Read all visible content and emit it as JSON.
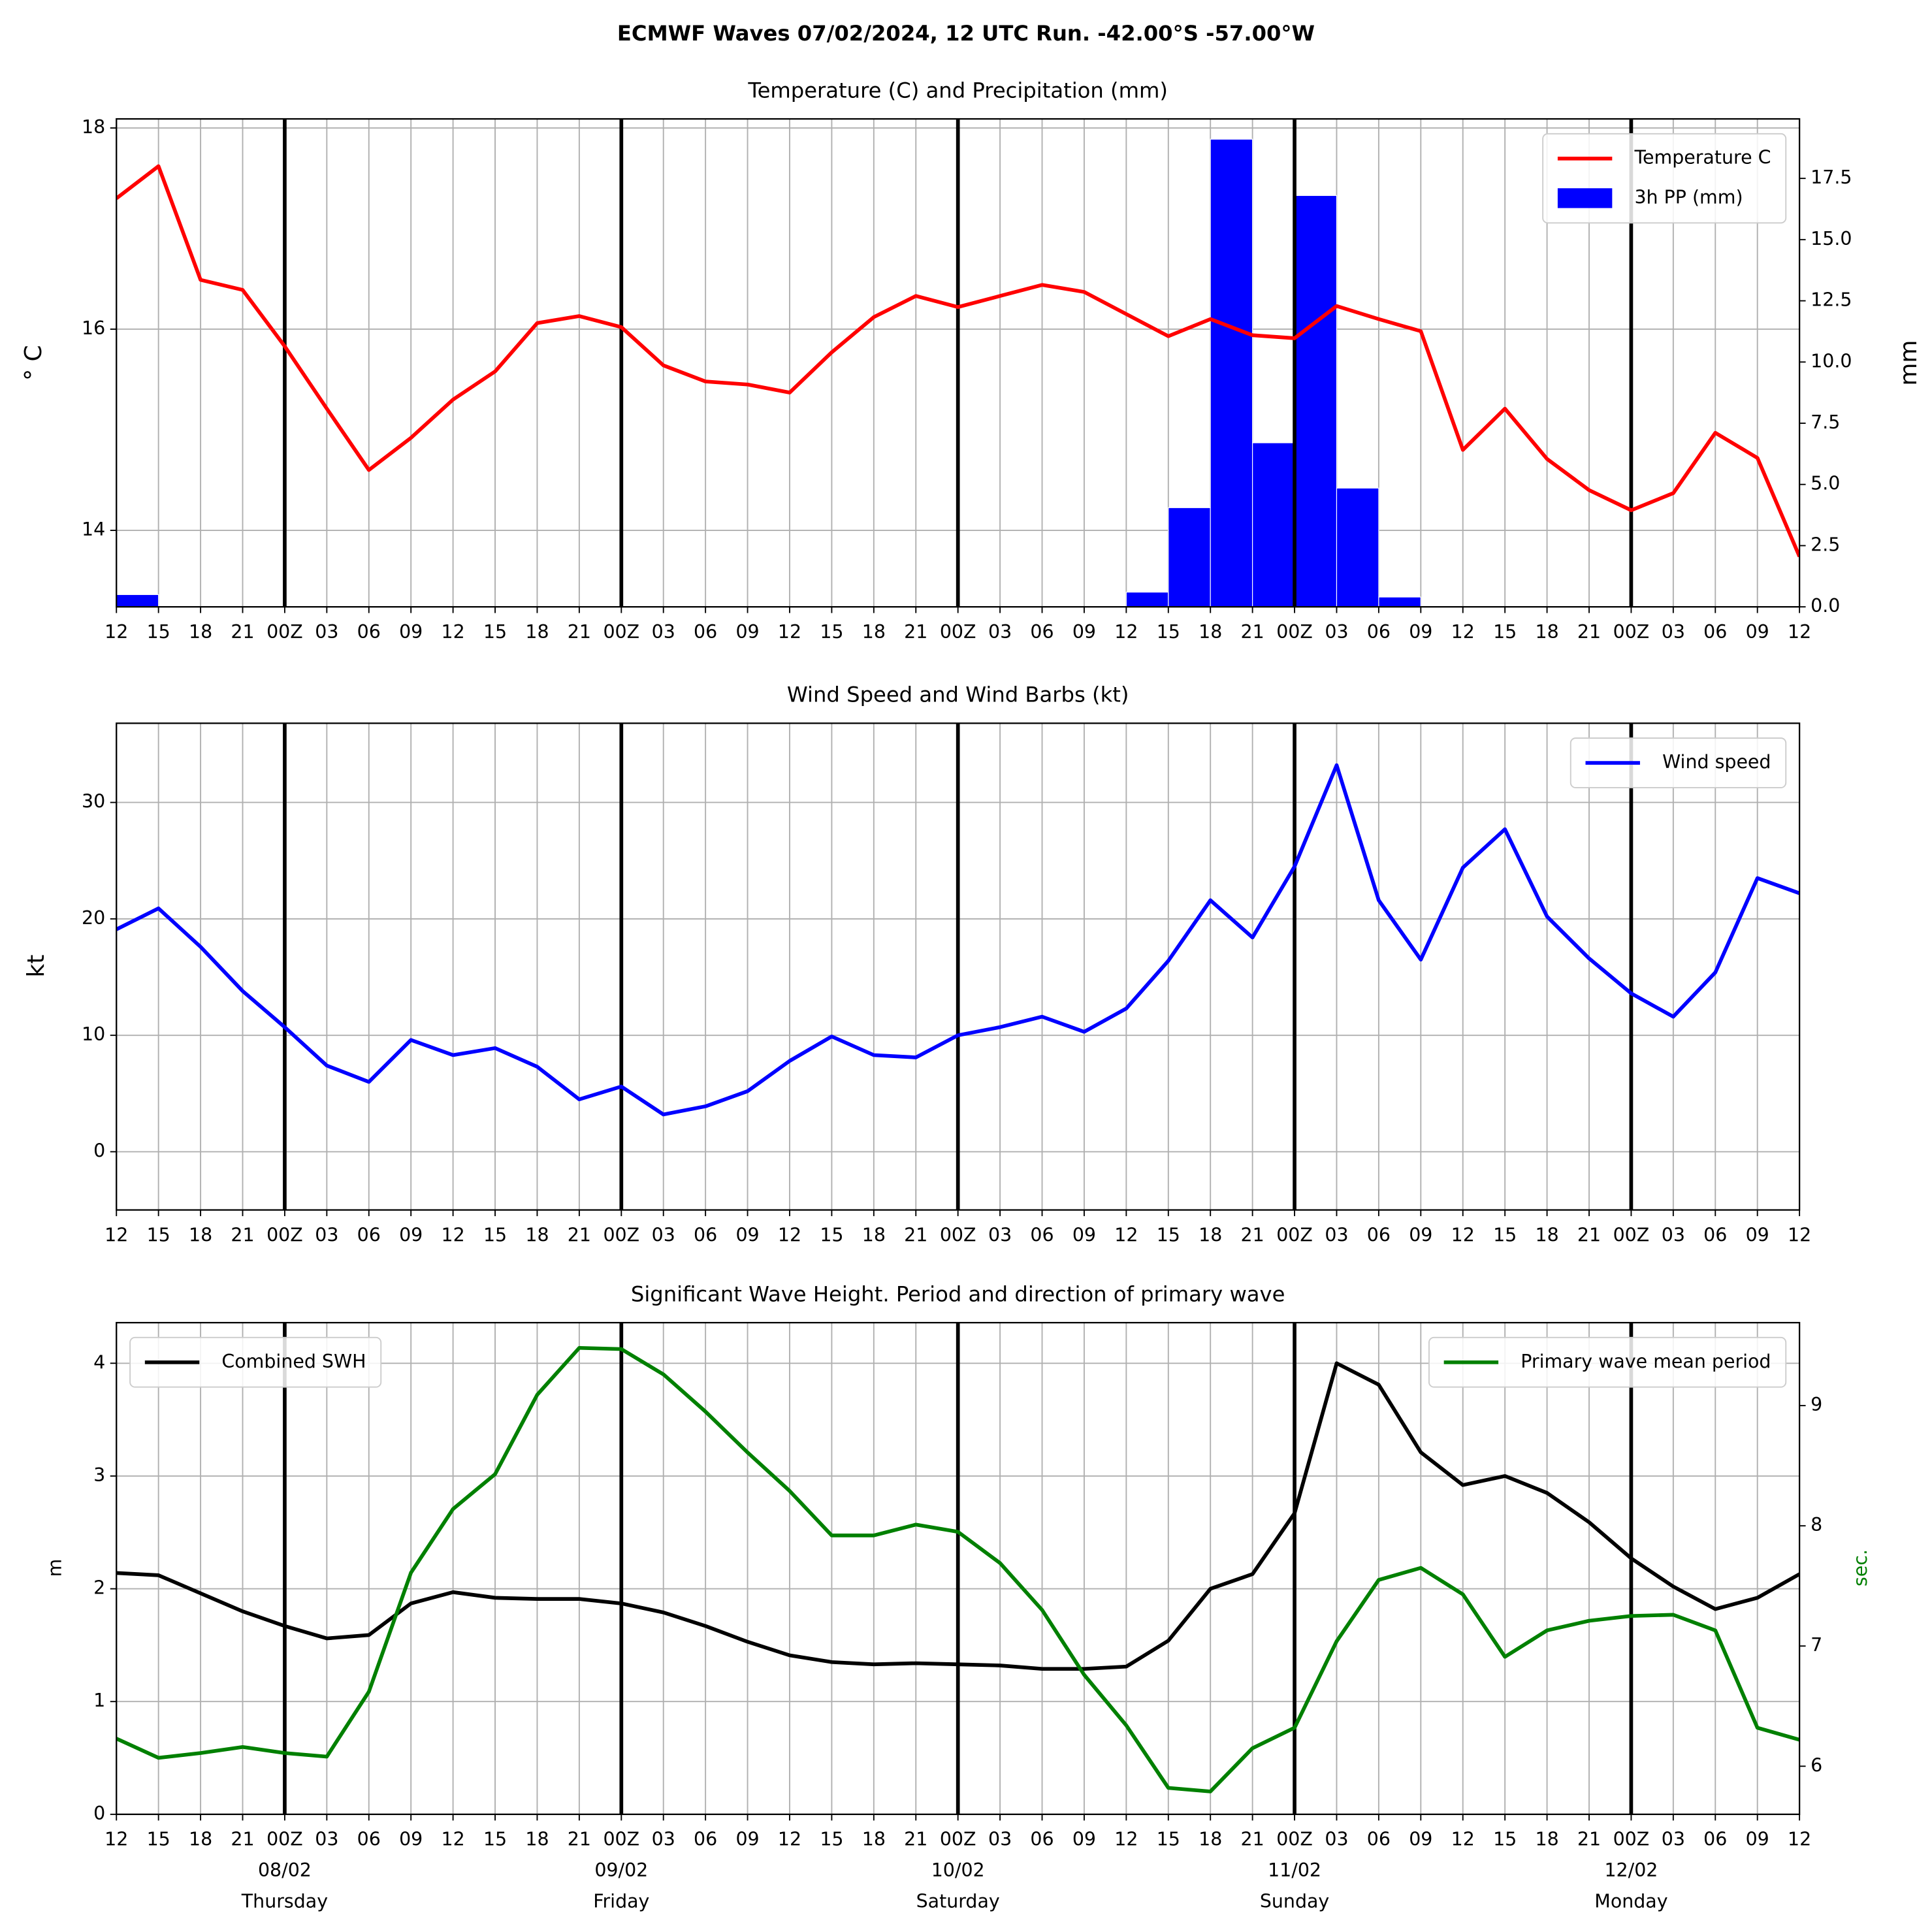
{
  "title": "ECMWF Waves 07/02/2024, 12 UTC Run. -42.00°S -57.00°W",
  "chart_data": [
    {
      "type": "combo",
      "title": "Temperature (C) and Precipitation (mm)",
      "categories": [
        "12",
        "15",
        "18",
        "21",
        "00Z",
        "03",
        "06",
        "09",
        "12",
        "15",
        "18",
        "21",
        "00Z",
        "03",
        "06",
        "09",
        "12",
        "15",
        "18",
        "21",
        "00Z",
        "03",
        "06",
        "09",
        "12",
        "15",
        "18",
        "21",
        "00Z",
        "03",
        "06",
        "09",
        "12",
        "15",
        "18",
        "21",
        "00Z",
        "03",
        "06",
        "09",
        "12"
      ],
      "ylabel": "° C",
      "y2label": "mm",
      "ylim": [
        13.24,
        18.09
      ],
      "yticks": [
        14,
        16,
        18
      ],
      "y2lim": [
        0,
        19.93
      ],
      "y2ticks": [
        {
          "value": 0,
          "label": "0.0"
        },
        {
          "value": 2.5,
          "label": "2.5"
        },
        {
          "value": 5,
          "label": "5.0"
        },
        {
          "value": 7.5,
          "label": "7.5"
        },
        {
          "value": 10,
          "label": "10.0"
        },
        {
          "value": 12.5,
          "label": "12.5"
        },
        {
          "value": 15,
          "label": "15.0"
        },
        {
          "value": 17.5,
          "label": "17.5"
        }
      ],
      "grid": true,
      "series": [
        {
          "name": "Temperature C",
          "type": "line",
          "color": "#ff0000",
          "legend": "upper right",
          "values": [
            17.3,
            17.62,
            16.49,
            16.39,
            15.83,
            15.21,
            14.6,
            14.92,
            15.3,
            15.58,
            16.06,
            16.13,
            16.02,
            15.64,
            15.48,
            15.45,
            15.37,
            15.77,
            16.12,
            16.33,
            16.22,
            16.33,
            16.44,
            16.37,
            16.15,
            15.93,
            16.1,
            15.94,
            15.91,
            16.23,
            16.1,
            15.98,
            14.8,
            15.21,
            14.71,
            14.4,
            14.2,
            14.37,
            14.97,
            14.72,
            13.74
          ]
        },
        {
          "name": "3h PP (mm)",
          "type": "bar",
          "axis": "y2",
          "color": "#0000ff",
          "legend": "upper right",
          "values": [
            0.5,
            0,
            0,
            0,
            0,
            0,
            0,
            0,
            0,
            0,
            0,
            0,
            0,
            0,
            0,
            0,
            0,
            0,
            0,
            0,
            0,
            0,
            0,
            0,
            0.6,
            4.05,
            19.1,
            6.7,
            16.8,
            4.85,
            0.4,
            0,
            0,
            0,
            0,
            0,
            0,
            0,
            0,
            0,
            0
          ]
        }
      ]
    },
    {
      "type": "combo",
      "title": "Wind Speed and Wind Barbs (kt)",
      "categories": [
        "12",
        "15",
        "18",
        "21",
        "00Z",
        "03",
        "06",
        "09",
        "12",
        "15",
        "18",
        "21",
        "00Z",
        "03",
        "06",
        "09",
        "12",
        "15",
        "18",
        "21",
        "00Z",
        "03",
        "06",
        "09",
        "12",
        "15",
        "18",
        "21",
        "00Z",
        "03",
        "06",
        "09",
        "12",
        "15",
        "18",
        "21",
        "00Z",
        "03",
        "06",
        "09",
        "12"
      ],
      "ylabel": "kt",
      "ylim": [
        -5,
        36.8
      ],
      "yticks": [
        0,
        10,
        20,
        30
      ],
      "grid": true,
      "series": [
        {
          "name": "Wind speed",
          "type": "line",
          "color": "#0000ff",
          "legend": "upper right",
          "values": [
            19.1,
            20.9,
            17.6,
            13.8,
            10.7,
            7.4,
            6.0,
            9.6,
            8.3,
            8.9,
            7.3,
            4.5,
            5.6,
            3.2,
            3.9,
            5.2,
            7.8,
            9.9,
            8.3,
            8.1,
            10.0,
            10.7,
            11.6,
            10.3,
            12.3,
            16.4,
            21.6,
            18.4,
            24.5,
            33.2,
            21.6,
            16.5,
            24.4,
            27.7,
            20.2,
            16.6,
            13.6,
            11.6,
            15.4,
            23.5,
            22.2
          ]
        }
      ]
    },
    {
      "type": "combo",
      "title": "Significant Wave Height. Period and direction of primary wave",
      "categories": [
        "12",
        "15",
        "18",
        "21",
        "00Z\n08/02\nThursday",
        "03",
        "06",
        "09",
        "12",
        "15",
        "18",
        "21",
        "00Z\n09/02\nFriday",
        "03",
        "06",
        "09",
        "12",
        "15",
        "18",
        "21",
        "00Z\n10/02\nSaturday",
        "03",
        "06",
        "09",
        "12",
        "15",
        "18",
        "21",
        "00Z\n11/02\nSunday",
        "03",
        "06",
        "09",
        "12",
        "15",
        "18",
        "21",
        "00Z\n12/02\nMonday",
        "03",
        "06",
        "09",
        "12"
      ],
      "ylabel": "m",
      "y2label": "sec.",
      "y2label_color": "#008000",
      "ylim": [
        0,
        4.36
      ],
      "yticks": [
        0,
        1,
        2,
        3,
        4
      ],
      "y2lim": [
        5.6,
        9.69
      ],
      "y2ticks": [
        6,
        7,
        8,
        9
      ],
      "grid": true,
      "series": [
        {
          "name": "Combined SWH",
          "type": "line",
          "color": "#000000",
          "legend": "upper left",
          "values": [
            2.14,
            2.12,
            1.96,
            1.8,
            1.67,
            1.56,
            1.59,
            1.87,
            1.97,
            1.92,
            1.91,
            1.91,
            1.87,
            1.79,
            1.67,
            1.53,
            1.41,
            1.35,
            1.33,
            1.34,
            1.33,
            1.32,
            1.29,
            1.29,
            1.31,
            1.54,
            2.0,
            2.13,
            2.67,
            4.0,
            3.81,
            3.21,
            2.92,
            3.0,
            2.85,
            2.59,
            2.27,
            2.02,
            1.82,
            1.92,
            2.13
          ]
        },
        {
          "name": "Primary wave mean period",
          "type": "line",
          "axis": "y2",
          "color": "#008000",
          "legend": "upper right",
          "values": [
            6.23,
            6.07,
            6.11,
            6.16,
            6.11,
            6.08,
            6.62,
            7.61,
            8.14,
            8.43,
            9.09,
            9.48,
            9.47,
            9.26,
            8.95,
            8.61,
            8.29,
            7.92,
            7.92,
            8.01,
            7.95,
            7.69,
            7.3,
            6.76,
            6.34,
            5.82,
            5.79,
            6.15,
            6.32,
            7.04,
            7.55,
            7.65,
            7.43,
            6.91,
            7.13,
            7.21,
            7.25,
            7.26,
            7.13,
            6.32,
            6.22
          ]
        }
      ]
    }
  ]
}
